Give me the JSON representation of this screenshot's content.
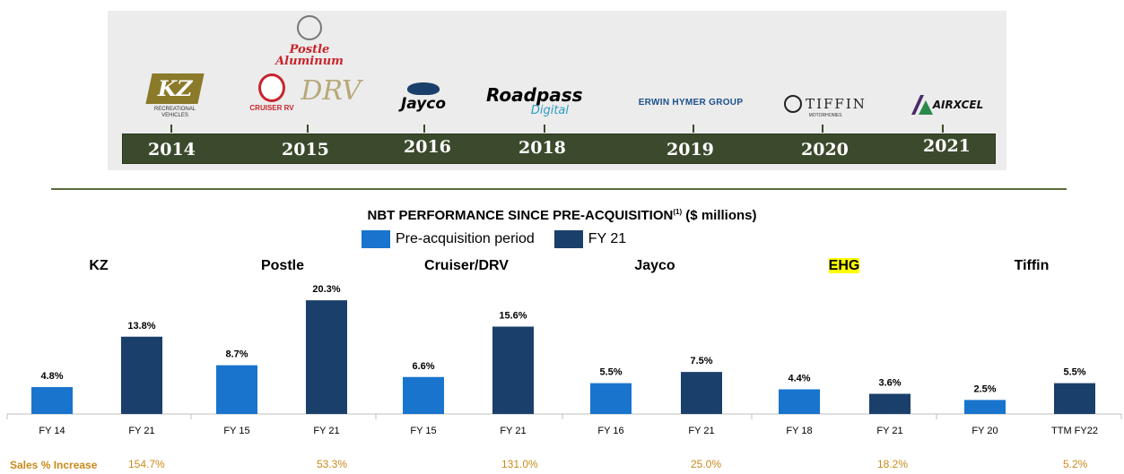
{
  "timeline": {
    "logos": [
      {
        "name": "KZ",
        "sub": "RECREATIONAL VEHICLES"
      },
      {
        "name": "Postle Aluminum"
      },
      {
        "name": "CRUISER RV"
      },
      {
        "name": "DRV"
      },
      {
        "name": "Jayco"
      },
      {
        "name": "Roadpass",
        "sub": "Digital"
      },
      {
        "name": "ERWIN HYMER GROUP"
      },
      {
        "name": "TIFFIN",
        "sub": "MOTORHOMES"
      },
      {
        "name": "AIRXCEL"
      }
    ],
    "years": [
      "2014",
      "2015",
      "2016",
      "2018",
      "2019",
      "2020",
      "2021"
    ]
  },
  "chart_data": {
    "type": "bar",
    "title": "NBT PERFORMANCE SINCE PRE-ACQUISITION",
    "title_sup": "(1)",
    "title_units": " ($ millions)",
    "legend": [
      "Pre-acquisition period",
      "FY 21"
    ],
    "colors": {
      "pre": "#1874cd",
      "fy21": "#1b3f6b"
    },
    "panels": [
      {
        "name": "KZ",
        "categories": [
          "FY 14",
          "FY 21"
        ],
        "values": [
          4.8,
          13.8
        ],
        "labels": [
          "4.8%",
          "13.8%"
        ],
        "sales_increase": "154.7%"
      },
      {
        "name": "Postle",
        "categories": [
          "FY 15",
          "FY 21"
        ],
        "values": [
          8.7,
          20.3
        ],
        "labels": [
          "8.7%",
          "20.3%"
        ],
        "sales_increase": "53.3%"
      },
      {
        "name": "Cruiser/DRV",
        "categories": [
          "FY 15",
          "FY 21"
        ],
        "values": [
          6.6,
          15.6
        ],
        "labels": [
          "6.6%",
          "15.6%"
        ],
        "sales_increase": "131.0%"
      },
      {
        "name": "Jayco",
        "categories": [
          "FY 16",
          "FY 21"
        ],
        "values": [
          5.5,
          7.5
        ],
        "labels": [
          "5.5%",
          "7.5%"
        ],
        "sales_increase": "25.0%"
      },
      {
        "name": "EHG",
        "categories": [
          "FY 18",
          "FY 21"
        ],
        "values": [
          4.4,
          3.6
        ],
        "labels": [
          "4.4%",
          "3.6%"
        ],
        "sales_increase": "18.2%",
        "highlight": true
      },
      {
        "name": "Tiffin",
        "categories": [
          "FY 20",
          "TTM FY22"
        ],
        "values": [
          2.5,
          5.5
        ],
        "labels": [
          "2.5%",
          "5.5%"
        ],
        "sales_increase": "5.2%"
      }
    ],
    "sales_label": "Sales % Increase"
  }
}
